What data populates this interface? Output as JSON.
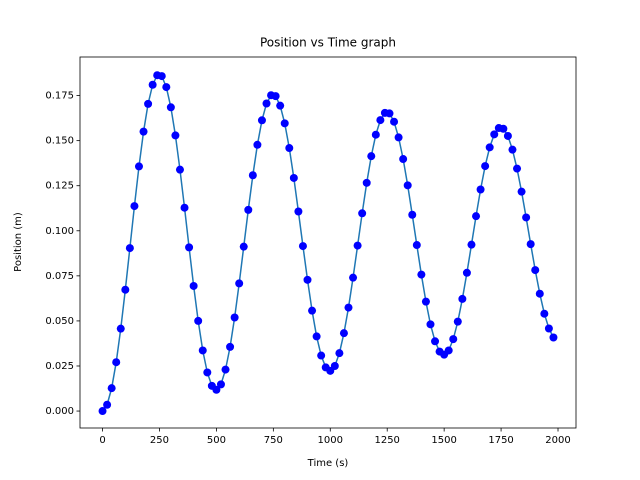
{
  "chart_data": {
    "type": "line",
    "title": "Position vs Time graph",
    "x_label": "Time (s)",
    "y_label": "Position (m)",
    "line_color": "#1f77b4",
    "marker_color": "#0000ff",
    "x": [
      0,
      20,
      40,
      60,
      80,
      100,
      120,
      140,
      160,
      180,
      200,
      220,
      240,
      260,
      280,
      300,
      320,
      340,
      360,
      380,
      400,
      420,
      440,
      460,
      480,
      500,
      520,
      540,
      560,
      580,
      600,
      620,
      640,
      660,
      680,
      700,
      720,
      740,
      760,
      780,
      800,
      820,
      840,
      860,
      880,
      900,
      920,
      940,
      960,
      980,
      1000,
      1020,
      1040,
      1060,
      1080,
      1100,
      1120,
      1140,
      1160,
      1180,
      1200,
      1220,
      1240,
      1260,
      1280,
      1300,
      1320,
      1340,
      1360,
      1380,
      1400,
      1420,
      1440,
      1460,
      1480,
      1500,
      1520,
      1540,
      1560,
      1580,
      1600,
      1620,
      1640,
      1660,
      1680,
      1700,
      1720,
      1740,
      1760,
      1780,
      1800,
      1820,
      1840,
      1860,
      1880,
      1900,
      1920,
      1940,
      1960,
      1980
    ],
    "values": [
      0.0,
      0.0035,
      0.0127,
      0.0271,
      0.0457,
      0.0673,
      0.0904,
      0.1137,
      0.1357,
      0.155,
      0.1704,
      0.181,
      0.1863,
      0.1858,
      0.1797,
      0.1685,
      0.1529,
      0.1339,
      0.1128,
      0.0908,
      0.0694,
      0.05,
      0.0336,
      0.0214,
      0.014,
      0.0118,
      0.0148,
      0.023,
      0.0356,
      0.0519,
      0.0708,
      0.0912,
      0.1116,
      0.1308,
      0.1477,
      0.1613,
      0.1706,
      0.1752,
      0.1747,
      0.1694,
      0.1596,
      0.1459,
      0.1293,
      0.1107,
      0.0915,
      0.0728,
      0.0557,
      0.0414,
      0.0308,
      0.0242,
      0.0223,
      0.025,
      0.0321,
      0.0432,
      0.0574,
      0.074,
      0.0918,
      0.1097,
      0.1266,
      0.1414,
      0.1533,
      0.1614,
      0.1654,
      0.1651,
      0.1605,
      0.1518,
      0.1398,
      0.1252,
      0.1089,
      0.0921,
      0.0757,
      0.0607,
      0.0481,
      0.0387,
      0.033,
      0.0313,
      0.0336,
      0.0399,
      0.0496,
      0.0622,
      0.0767,
      0.0923,
      0.1081,
      0.1229,
      0.1359,
      0.1463,
      0.1535,
      0.157,
      0.1566,
      0.1526,
      0.145,
      0.1345,
      0.1217,
      0.1074,
      0.0926,
      0.0782,
      0.0651,
      0.054,
      0.0458,
      0.0408
    ],
    "xlim": [
      -99,
      2079
    ],
    "ylim": [
      -0.0094,
      0.1964
    ],
    "xticks": [
      0,
      250,
      500,
      750,
      1000,
      1250,
      1500,
      1750,
      2000
    ],
    "yticks": [
      {
        "value": 0,
        "label": "0.000"
      },
      {
        "value": 0.025,
        "label": "0.025"
      },
      {
        "value": 0.05,
        "label": "0.050"
      },
      {
        "value": 0.075,
        "label": "0.075"
      },
      {
        "value": 0.1,
        "label": "0.100"
      },
      {
        "value": 0.125,
        "label": "0.125"
      },
      {
        "value": 0.15,
        "label": "0.150"
      },
      {
        "value": 0.175,
        "label": "0.175"
      }
    ]
  }
}
